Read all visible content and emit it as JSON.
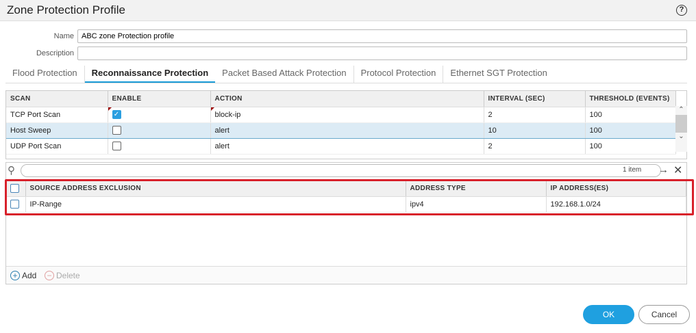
{
  "dialog": {
    "title": "Zone Protection Profile",
    "help_icon": "question-circle-icon"
  },
  "form": {
    "name_label": "Name",
    "name_value": "ABC zone Protection profile",
    "description_label": "Description",
    "description_value": ""
  },
  "tabs": [
    {
      "label": "Flood Protection"
    },
    {
      "label": "Reconnaissance Protection",
      "active": true
    },
    {
      "label": "Packet Based Attack Protection"
    },
    {
      "label": "Protocol Protection"
    },
    {
      "label": "Ethernet SGT Protection"
    }
  ],
  "scan_table": {
    "columns": [
      "SCAN",
      "ENABLE",
      "ACTION",
      "INTERVAL (SEC)",
      "THRESHOLD (EVENTS)"
    ],
    "rows": [
      {
        "scan": "TCP Port Scan",
        "enabled": true,
        "action": "block-ip",
        "interval": "2",
        "threshold": "100"
      },
      {
        "scan": "Host Sweep",
        "enabled": false,
        "action": "alert",
        "interval": "10",
        "threshold": "100",
        "selected": true
      },
      {
        "scan": "UDP Port Scan",
        "enabled": false,
        "action": "alert",
        "interval": "2",
        "threshold": "100"
      }
    ]
  },
  "search": {
    "placeholder": "",
    "count": "1 item"
  },
  "exclusion_table": {
    "columns": [
      "SOURCE ADDRESS EXCLUSION",
      "ADDRESS TYPE",
      "IP ADDRESS(ES)"
    ],
    "rows": [
      {
        "name": "IP-Range",
        "type": "ipv4",
        "ip": "192.168.1.0/24"
      }
    ]
  },
  "actions": {
    "add": "Add",
    "delete": "Delete"
  },
  "footer": {
    "ok": "OK",
    "cancel": "Cancel"
  },
  "colors": {
    "accent": "#1a9bd7",
    "ok_button": "#1fa0e0",
    "highlight_box": "#d8202a",
    "selected_row": "#dcebf5"
  }
}
